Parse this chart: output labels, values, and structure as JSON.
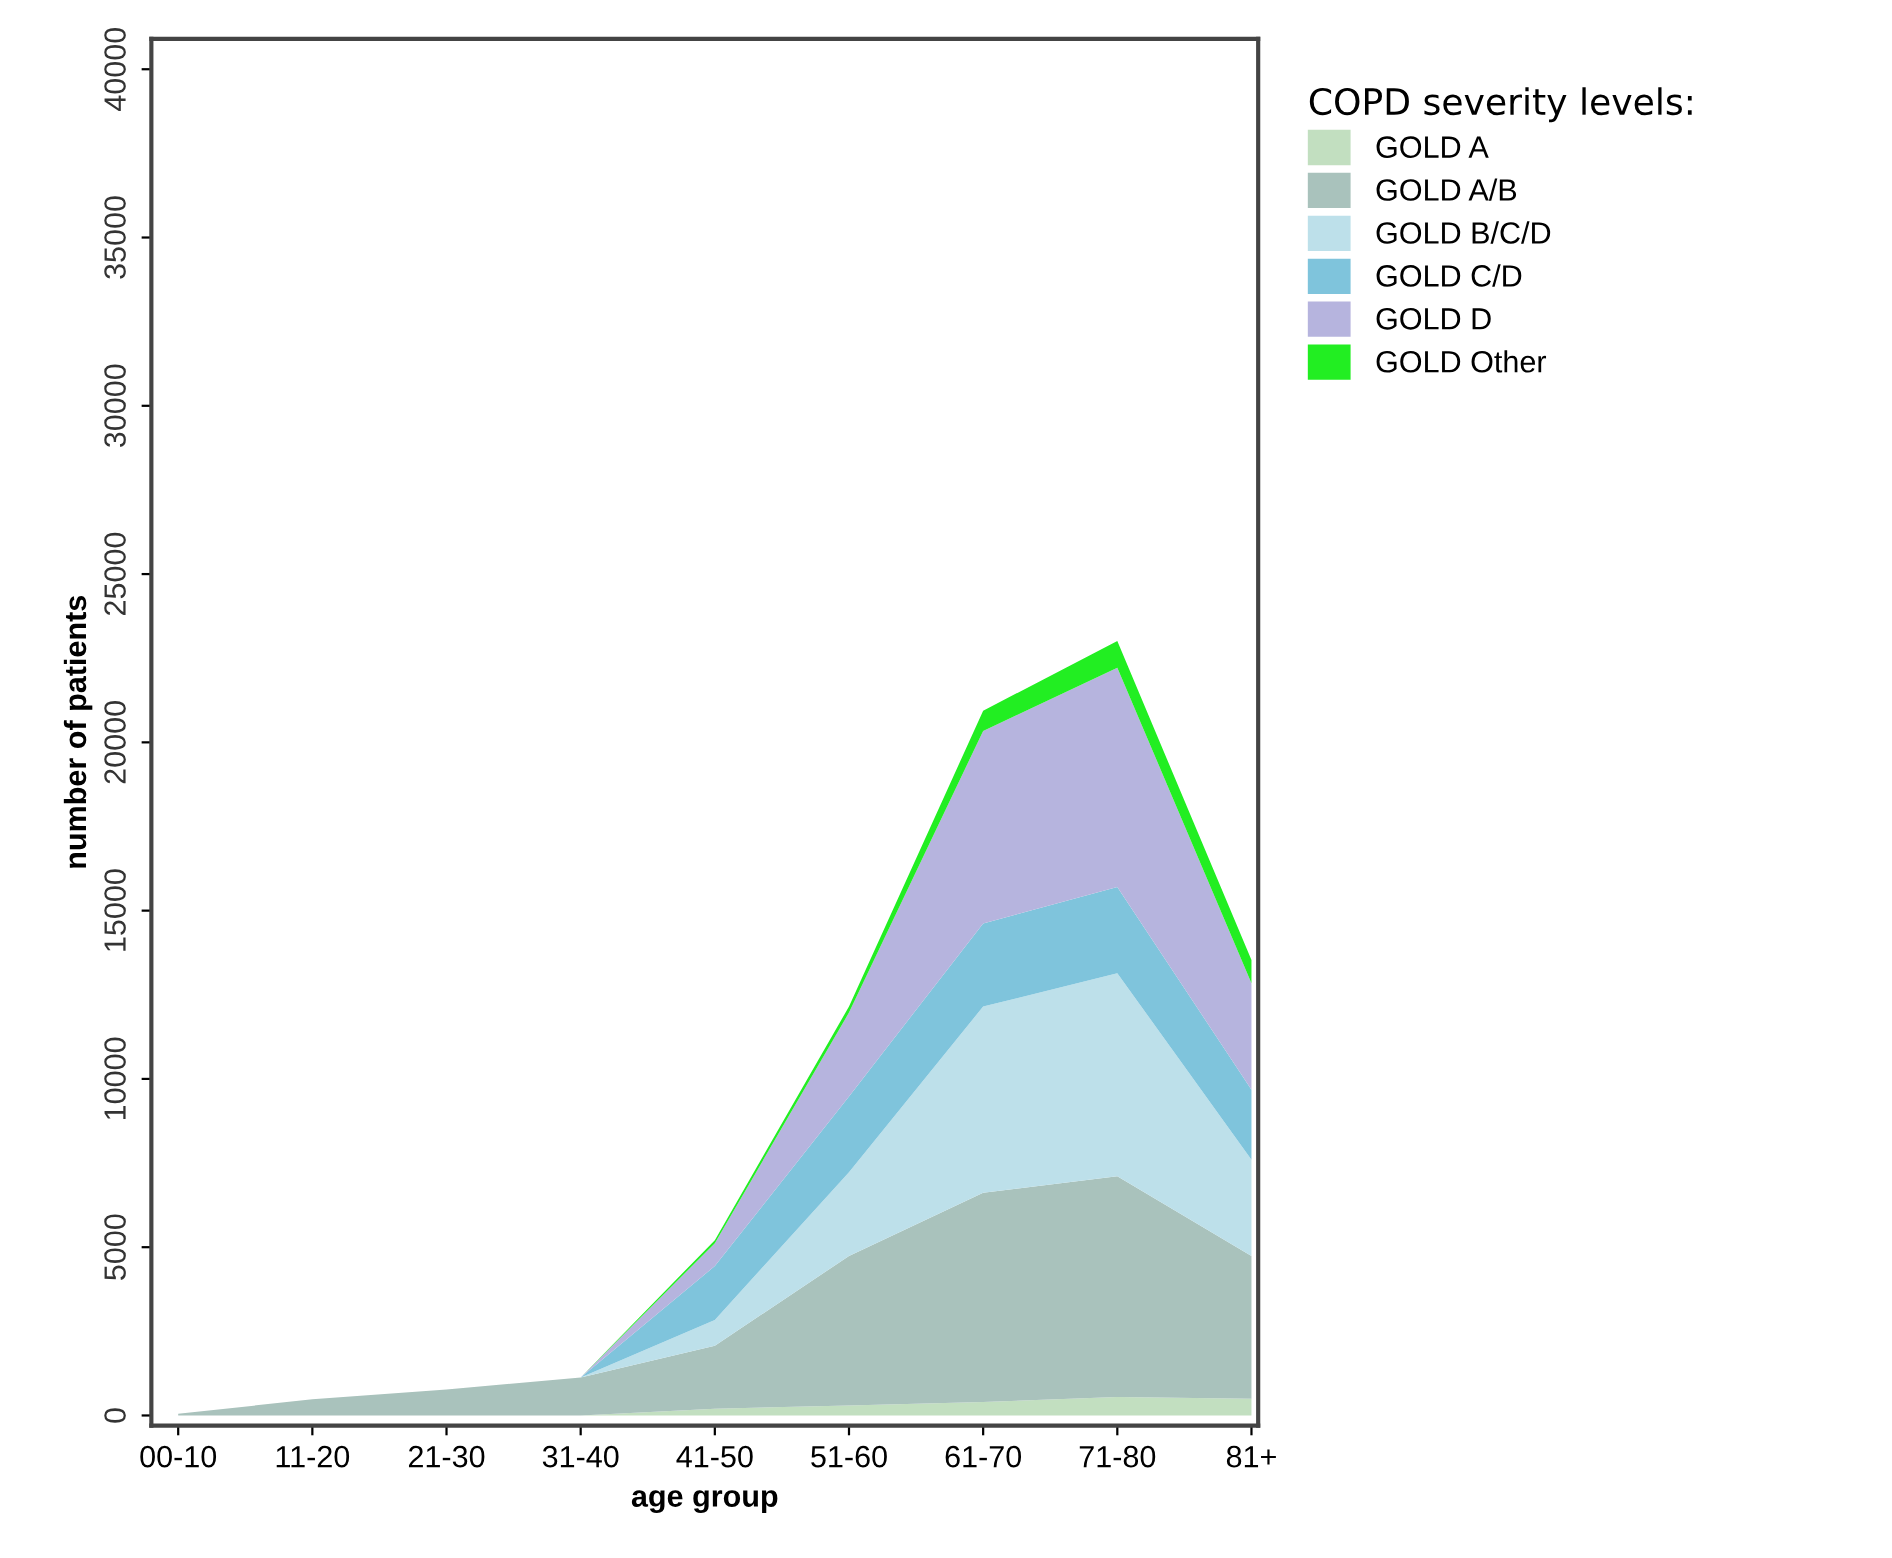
{
  "chart_data": {
    "type": "area",
    "stacked": true,
    "xlabel": "age group",
    "ylabel": "number of patients",
    "legend_title": "COPD severity levels:",
    "legend": "top right",
    "grid": false,
    "categories": [
      "00-10",
      "11-20",
      "21-30",
      "31-40",
      "41-50",
      "51-60",
      "61-70",
      "71-80",
      "81+"
    ],
    "ylim": [
      -300,
      40900
    ],
    "yticks": [
      0,
      5000,
      10000,
      15000,
      20000,
      25000,
      30000,
      35000,
      40000
    ],
    "series": [
      {
        "name": "GOLD A",
        "color": "#c2dfc0",
        "values": [
          0,
          0,
          0,
          0,
          200,
          300,
          400,
          550,
          500
        ]
      },
      {
        "name": "GOLD A/B",
        "color": "#a9c2bc",
        "values": [
          50,
          480,
          770,
          1130,
          1870,
          4440,
          6220,
          6560,
          4240
        ]
      },
      {
        "name": "GOLD B/C/D",
        "color": "#bde0ea",
        "values": [
          0,
          0,
          0,
          0,
          770,
          2490,
          5530,
          6030,
          2860
        ]
      },
      {
        "name": "GOLD C/D",
        "color": "#7fc4dc",
        "values": [
          0,
          0,
          0,
          0,
          1600,
          2250,
          2470,
          2560,
          2080
        ]
      },
      {
        "name": "GOLD D",
        "color": "#b6b4de",
        "values": [
          0,
          0,
          0,
          0,
          680,
          2490,
          5720,
          6520,
          3160
        ]
      },
      {
        "name": "GOLD Other",
        "color": "#22ee22",
        "values": [
          0,
          0,
          0,
          0,
          90,
          180,
          600,
          790,
          690
        ]
      }
    ]
  }
}
